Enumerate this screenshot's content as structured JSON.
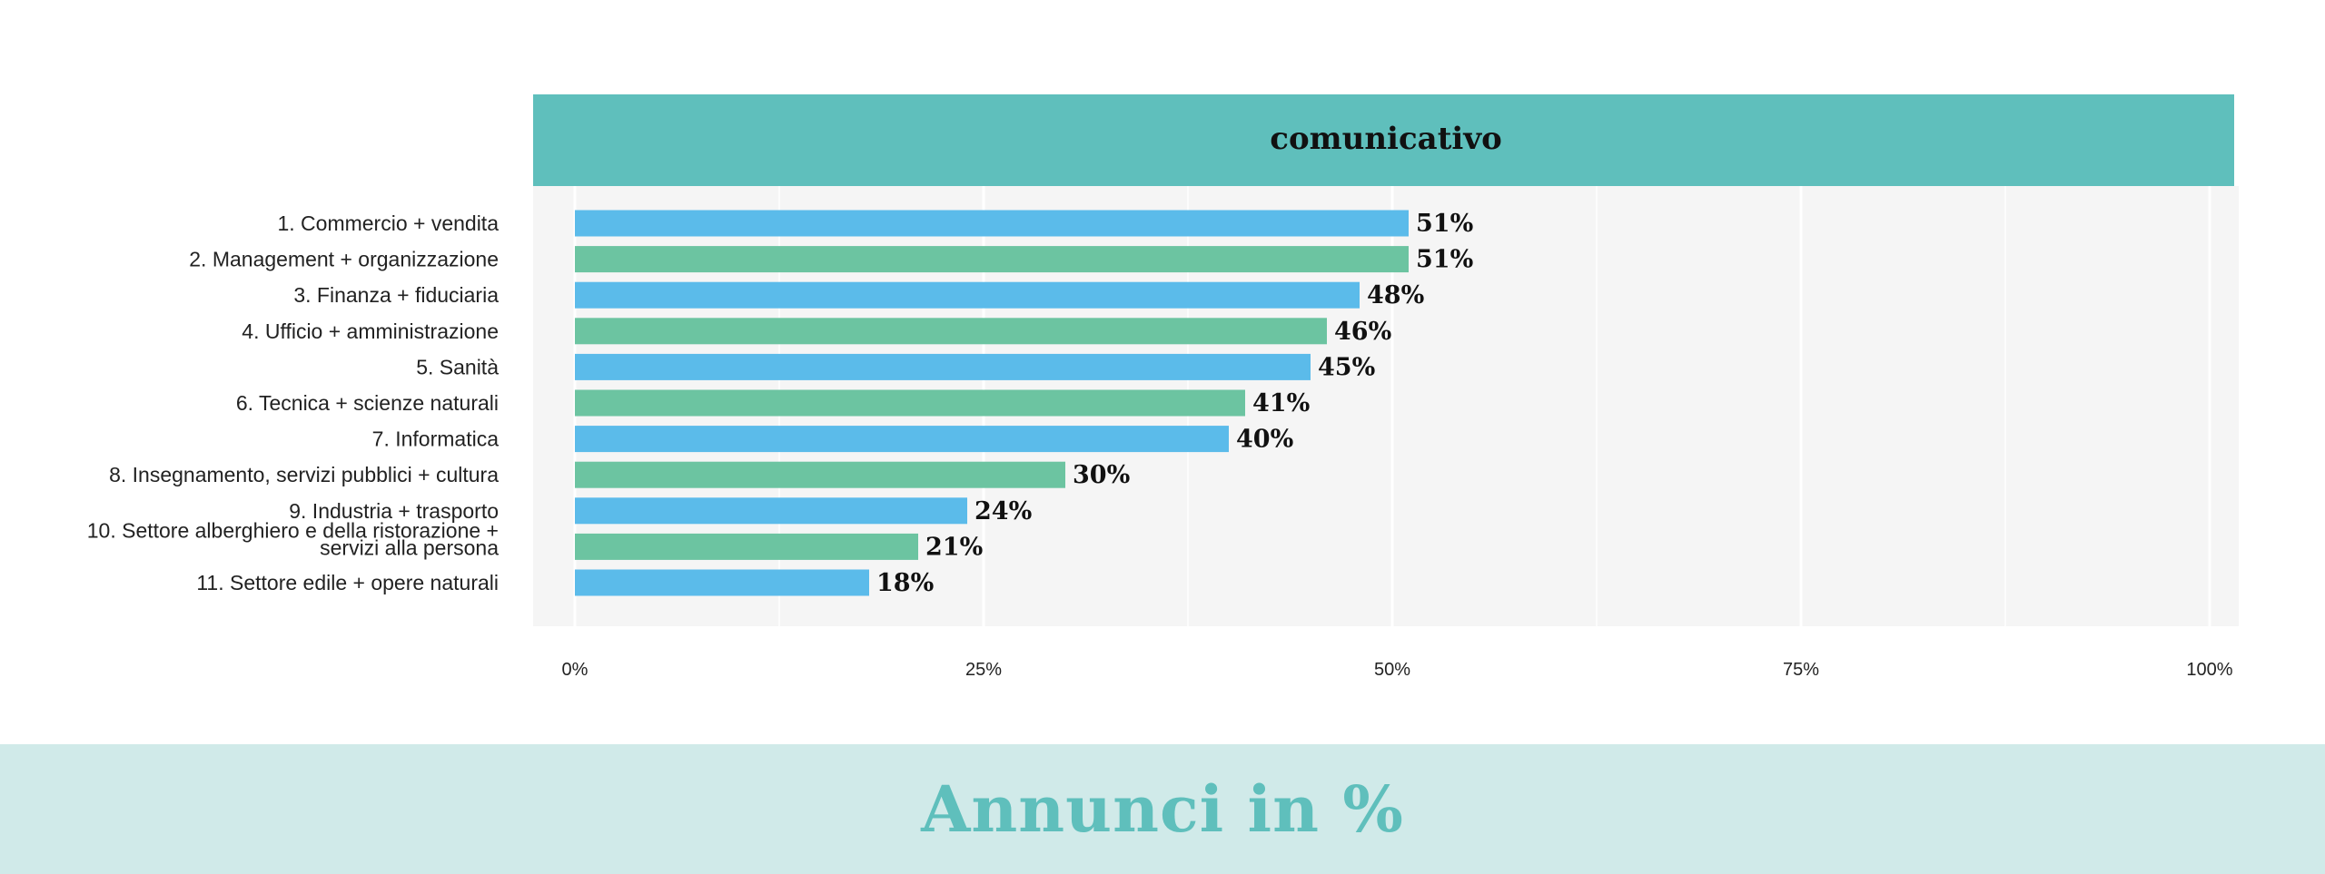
{
  "chart_data": {
    "type": "bar",
    "orientation": "horizontal",
    "title": "comunicativo",
    "categories": [
      [
        "1. Commercio + vendita"
      ],
      [
        "2. Management + organizzazione"
      ],
      [
        "3. Finanza + fiduciaria"
      ],
      [
        "4. Ufficio + amministrazione"
      ],
      [
        "5. Sanità"
      ],
      [
        "6. Tecnica + scienze naturali"
      ],
      [
        "7. Informatica"
      ],
      [
        "8. Insegnamento, servizi pubblici + cultura"
      ],
      [
        "9. Industria + trasporto"
      ],
      [
        "10. Settore alberghiero e della ristorazione +",
        "servizi alla persona"
      ],
      [
        "11. Settore edile + opere naturali"
      ]
    ],
    "values": [
      51,
      51,
      48,
      46,
      45,
      41,
      40,
      30,
      24,
      21,
      18
    ],
    "value_labels": [
      "51%",
      "51%",
      "48%",
      "46%",
      "45%",
      "41%",
      "40%",
      "30%",
      "24%",
      "21%",
      "18%"
    ],
    "xlim": [
      0,
      100
    ],
    "ticks": [
      {
        "value": 0,
        "label": "0%"
      },
      {
        "value": 25,
        "label": "25%"
      },
      {
        "value": 50,
        "label": "50%"
      },
      {
        "value": 75,
        "label": "75%"
      },
      {
        "value": 100,
        "label": "100%"
      }
    ],
    "grid": true,
    "colors": {
      "bar_odd": "#5bbbea",
      "bar_even": "#6cc4a1",
      "header_bg": "#5fbfbc",
      "panel_bg": "#f5f5f5",
      "footer_bg": "#d0eae9",
      "footer_text": "#5fbfbc"
    }
  },
  "footer": {
    "title": "Annunci in %"
  }
}
